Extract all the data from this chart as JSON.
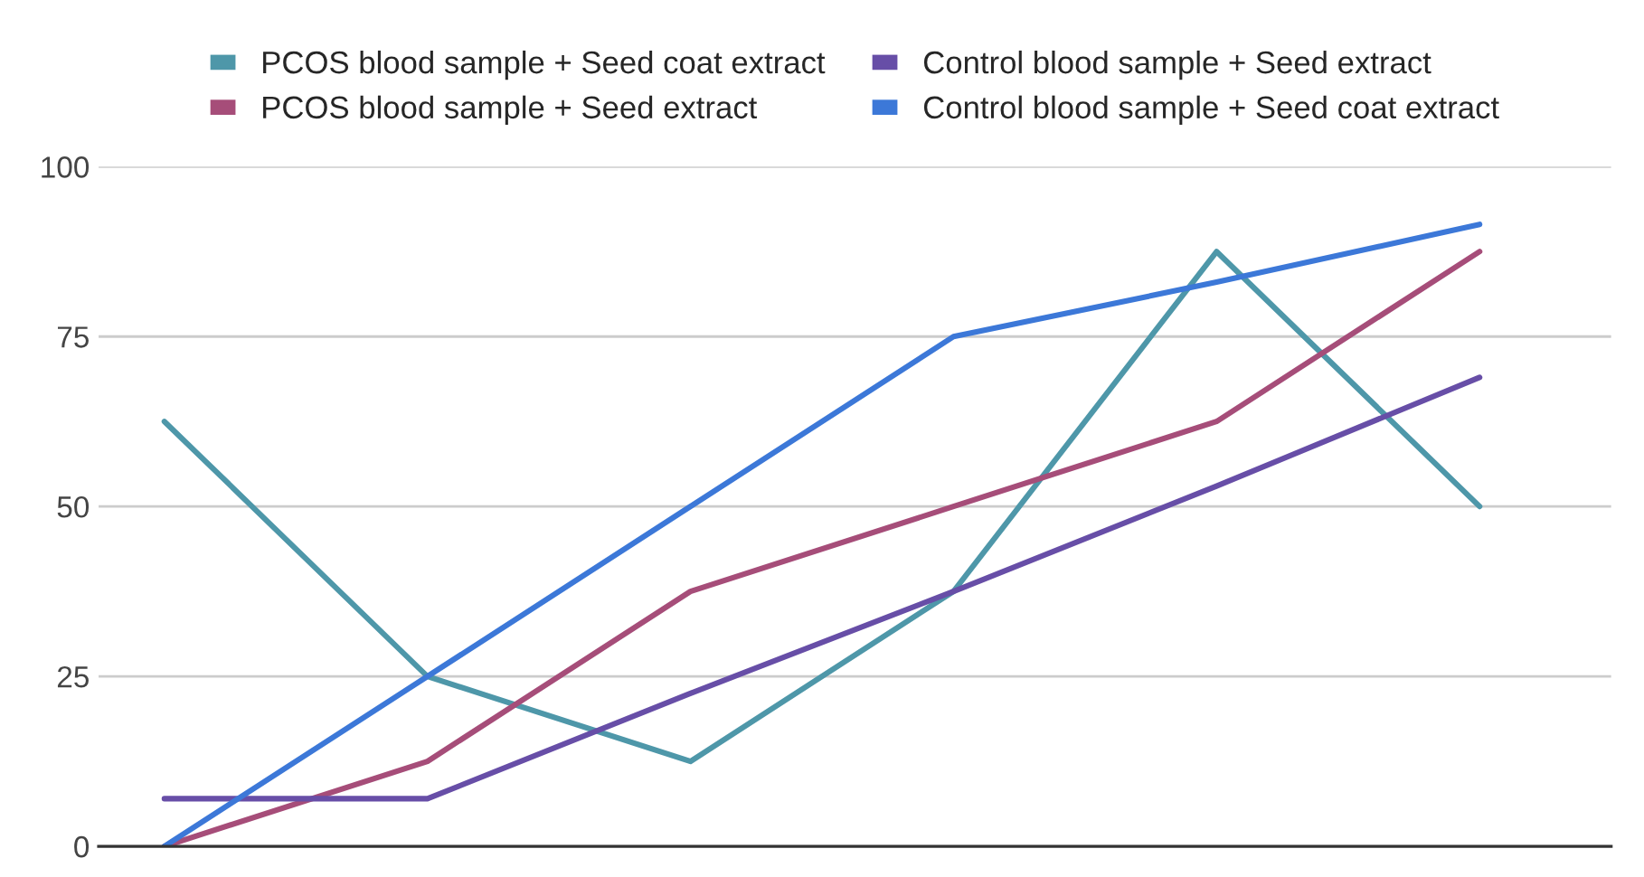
{
  "chart_data": {
    "type": "line",
    "categories": [
      null,
      null,
      null,
      null,
      null,
      null
    ],
    "series": [
      {
        "name": "PCOS blood sample + Seed coat extract",
        "color": "#4e97a9",
        "values": [
          62.5,
          25,
          12.5,
          37.5,
          87.5,
          50
        ]
      },
      {
        "name": "PCOS blood sample + Seed extract",
        "color": "#a64d79",
        "values": [
          0,
          12.5,
          37.5,
          50,
          62.5,
          87.5
        ]
      },
      {
        "name": "Control blood sample + Seed extract",
        "color": "#674ea7",
        "values": [
          7,
          7,
          22.5,
          37.5,
          53,
          69
        ]
      },
      {
        "name": "Control blood sample + Seed coat extract",
        "color": "#3c78d8",
        "values": [
          0,
          25,
          50,
          75,
          83,
          91.5
        ]
      }
    ],
    "ylim": [
      0,
      100
    ],
    "yticks": [
      0,
      25,
      50,
      75,
      100
    ],
    "grid": "y",
    "legend": "top",
    "tick_labels": "y",
    "marker": "none",
    "line_style": "solid"
  }
}
